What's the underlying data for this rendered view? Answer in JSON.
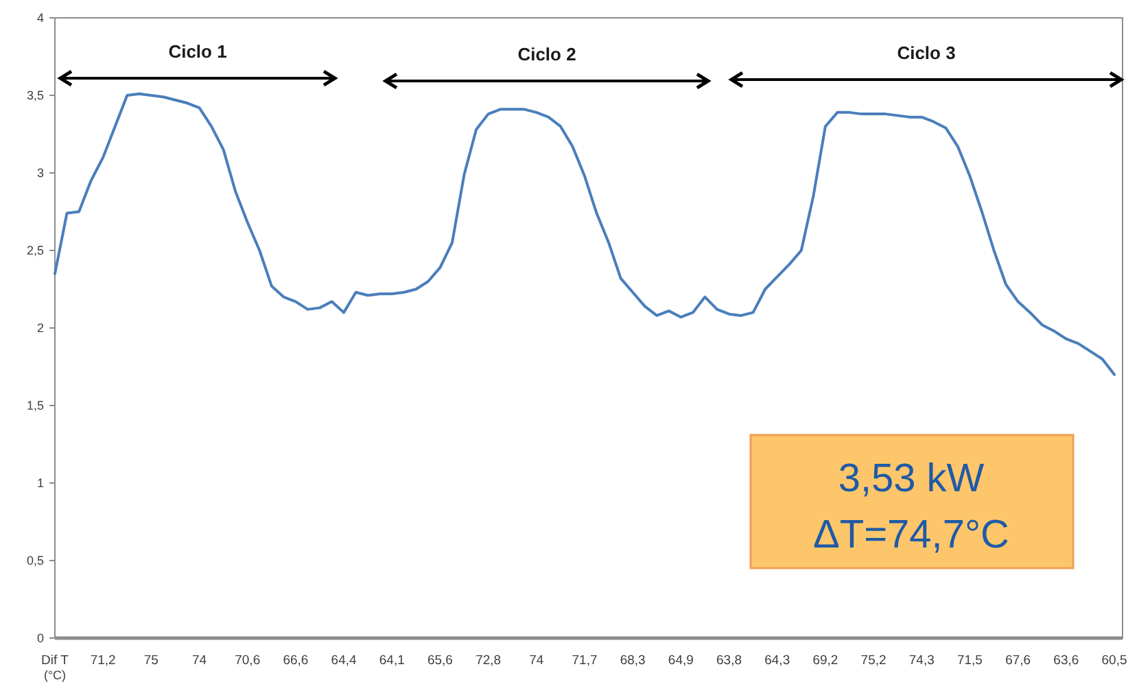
{
  "chart_data": {
    "type": "line",
    "xlabel": "Dif T (°C)",
    "categories": [
      null,
      null,
      null,
      null,
      "71,2",
      null,
      null,
      null,
      "75",
      null,
      null,
      null,
      "74",
      null,
      null,
      null,
      "70,6",
      null,
      null,
      null,
      "66,6",
      null,
      null,
      null,
      "64,4",
      null,
      null,
      null,
      "64,1",
      null,
      null,
      null,
      "65,6",
      null,
      null,
      null,
      "72,8",
      null,
      null,
      null,
      "74",
      null,
      null,
      null,
      "71,7",
      null,
      null,
      null,
      "68,3",
      null,
      null,
      null,
      "64,9",
      null,
      null,
      null,
      "63,8",
      null,
      null,
      null,
      "64,3",
      null,
      null,
      null,
      "69,2",
      null,
      null,
      null,
      "75,2",
      null,
      null,
      null,
      "74,3",
      null,
      null,
      null,
      "71,5",
      null,
      null,
      null,
      "67,6",
      null,
      null,
      null,
      "63,6",
      null,
      null,
      null,
      "60,5"
    ],
    "series": [
      {
        "color": "#4a7ebb",
        "values": [
          2.35,
          2.74,
          2.75,
          2.95,
          3.1,
          3.3,
          3.5,
          3.51,
          3.5,
          3.49,
          3.47,
          3.45,
          3.42,
          3.3,
          3.15,
          2.88,
          2.68,
          2.5,
          2.27,
          2.2,
          2.17,
          2.12,
          2.13,
          2.17,
          2.1,
          2.23,
          2.21,
          2.22,
          2.22,
          2.23,
          2.25,
          2.3,
          2.39,
          2.55,
          2.99,
          3.28,
          3.38,
          3.41,
          3.41,
          3.41,
          3.39,
          3.36,
          3.3,
          3.17,
          2.98,
          2.74,
          2.55,
          2.32,
          2.23,
          2.14,
          2.08,
          2.11,
          2.07,
          2.1,
          2.2,
          2.12,
          2.09,
          2.08,
          2.1,
          2.25,
          2.33,
          2.41,
          2.5,
          2.85,
          3.3,
          3.39,
          3.39,
          3.38,
          3.38,
          3.38,
          3.37,
          3.36,
          3.36,
          3.33,
          3.29,
          3.17,
          2.98,
          2.75,
          2.5,
          2.28,
          2.17,
          2.1,
          2.02,
          1.98,
          1.93,
          1.9,
          1.85,
          1.8,
          1.7
        ]
      }
    ],
    "ylim": [
      0,
      4
    ],
    "yticks": [
      0,
      {
        "value": 0.5,
        "label": "0,5"
      },
      1,
      {
        "value": 1.5,
        "label": "1,5"
      },
      2,
      {
        "value": 2.5,
        "label": "2,5"
      },
      3,
      {
        "value": 3.5,
        "label": "3,5"
      },
      4
    ],
    "grid": false,
    "marker": "none",
    "line_style": "solid",
    "annotations": [
      "Ciclo 1",
      "Ciclo 2",
      "Ciclo 3",
      "3,53 kW",
      "ΔT=74,7°C"
    ]
  }
}
